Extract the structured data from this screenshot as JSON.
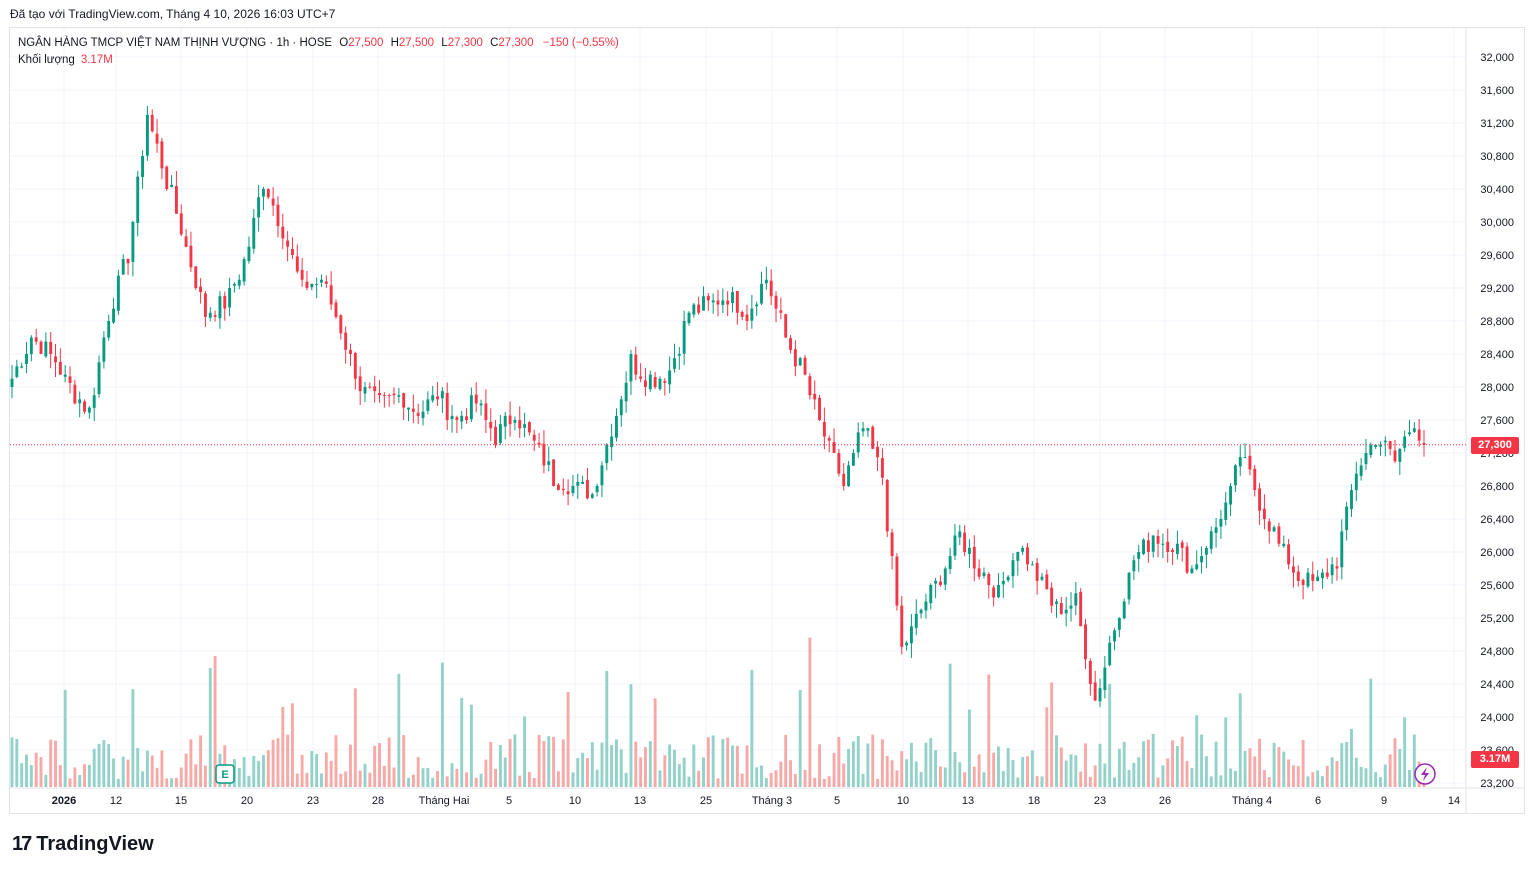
{
  "header": {
    "source_line": "Đã tạo với TradingView.com, Tháng 4 10, 2026 16:03 UTC+7"
  },
  "legend": {
    "symbol": "NGÂN HÀNG TMCP VIỆT NAM THỊNH VƯỢNG · 1h · HOSE",
    "open_label": "O",
    "open": "27,500",
    "high_label": "H",
    "high": "27,500",
    "low_label": "L",
    "low": "27,300",
    "close_label": "C",
    "close": "27,300",
    "change": "−150 (−0.55%)",
    "volume_label": "Khối lượng",
    "volume": "3.17M"
  },
  "badges": {
    "price": "27,300",
    "volume": "3.17M"
  },
  "footer": {
    "logo_mark": "17",
    "logo_text": "TradingView"
  },
  "colors": {
    "up": "#089981",
    "down": "#f23645",
    "up_volume": "#92d2c8",
    "down_volume": "#f7a9a7",
    "grid": "#f0f3fa",
    "price_line": "#f23645"
  },
  "icons": [
    "earnings-e-icon",
    "lightning-icon",
    "tradingview-logo-icon"
  ],
  "chart_data": {
    "type": "candlestick",
    "interval": "1h",
    "exchange": "HOSE",
    "ylim": [
      23100,
      32200
    ],
    "y_ticks": [
      "32,000",
      "31,600",
      "31,200",
      "30,800",
      "30,400",
      "30,000",
      "29,600",
      "29,200",
      "28,800",
      "28,400",
      "28,000",
      "27,600",
      "27,200",
      "26,800",
      "26,400",
      "26,000",
      "25,600",
      "25,200",
      "24,800",
      "24,400",
      "24,000",
      "23,600",
      "23,200"
    ],
    "x_ticks": [
      "2026",
      "12",
      "15",
      "20",
      "23",
      "28",
      "Tháng Hai",
      "5",
      "10",
      "13",
      "25",
      "Tháng 3",
      "5",
      "10",
      "13",
      "18",
      "23",
      "26",
      "Tháng 4",
      "6",
      "9",
      "14"
    ],
    "last_price": 27300,
    "last_volume": "3.17M",
    "close_path": [
      {
        "i": 0,
        "c": 28100
      },
      {
        "i": 4,
        "c": 28600
      },
      {
        "i": 8,
        "c": 28400
      },
      {
        "i": 12,
        "c": 28000
      },
      {
        "i": 16,
        "c": 27700
      },
      {
        "i": 20,
        "c": 28900
      },
      {
        "i": 24,
        "c": 29600
      },
      {
        "i": 28,
        "c": 31300
      },
      {
        "i": 32,
        "c": 30500
      },
      {
        "i": 36,
        "c": 29700
      },
      {
        "i": 40,
        "c": 28900
      },
      {
        "i": 44,
        "c": 29000
      },
      {
        "i": 48,
        "c": 29500
      },
      {
        "i": 52,
        "c": 30500
      },
      {
        "i": 56,
        "c": 29900
      },
      {
        "i": 60,
        "c": 29200
      },
      {
        "i": 64,
        "c": 29300
      },
      {
        "i": 68,
        "c": 28700
      },
      {
        "i": 72,
        "c": 28000
      },
      {
        "i": 76,
        "c": 27800
      },
      {
        "i": 80,
        "c": 27900
      },
      {
        "i": 84,
        "c": 27700
      },
      {
        "i": 88,
        "c": 27900
      },
      {
        "i": 92,
        "c": 27600
      },
      {
        "i": 96,
        "c": 27800
      },
      {
        "i": 100,
        "c": 27400
      },
      {
        "i": 104,
        "c": 27700
      },
      {
        "i": 108,
        "c": 27300
      },
      {
        "i": 112,
        "c": 26900
      },
      {
        "i": 116,
        "c": 26800
      },
      {
        "i": 120,
        "c": 26700
      },
      {
        "i": 124,
        "c": 27500
      },
      {
        "i": 128,
        "c": 28300
      },
      {
        "i": 132,
        "c": 28100
      },
      {
        "i": 136,
        "c": 28200
      },
      {
        "i": 140,
        "c": 28900
      },
      {
        "i": 144,
        "c": 29000
      },
      {
        "i": 148,
        "c": 29100
      },
      {
        "i": 152,
        "c": 28900
      },
      {
        "i": 156,
        "c": 29300
      },
      {
        "i": 160,
        "c": 28600
      },
      {
        "i": 164,
        "c": 28100
      },
      {
        "i": 168,
        "c": 27400
      },
      {
        "i": 172,
        "c": 26800
      },
      {
        "i": 176,
        "c": 27500
      },
      {
        "i": 180,
        "c": 26900
      },
      {
        "i": 184,
        "c": 24800
      },
      {
        "i": 188,
        "c": 25300
      },
      {
        "i": 192,
        "c": 25700
      },
      {
        "i": 196,
        "c": 26200
      },
      {
        "i": 200,
        "c": 25800
      },
      {
        "i": 204,
        "c": 25500
      },
      {
        "i": 208,
        "c": 26100
      },
      {
        "i": 212,
        "c": 25700
      },
      {
        "i": 216,
        "c": 25300
      },
      {
        "i": 220,
        "c": 25400
      },
      {
        "i": 224,
        "c": 24200
      },
      {
        "i": 228,
        "c": 25100
      },
      {
        "i": 232,
        "c": 25900
      },
      {
        "i": 236,
        "c": 26200
      },
      {
        "i": 240,
        "c": 26100
      },
      {
        "i": 244,
        "c": 25800
      },
      {
        "i": 248,
        "c": 26200
      },
      {
        "i": 252,
        "c": 26700
      },
      {
        "i": 254,
        "c": 27200
      },
      {
        "i": 258,
        "c": 26600
      },
      {
        "i": 262,
        "c": 26100
      },
      {
        "i": 266,
        "c": 25700
      },
      {
        "i": 270,
        "c": 25600
      },
      {
        "i": 274,
        "c": 25900
      },
      {
        "i": 278,
        "c": 27000
      },
      {
        "i": 282,
        "c": 27400
      },
      {
        "i": 286,
        "c": 27100
      },
      {
        "i": 290,
        "c": 27600
      },
      {
        "i": 292,
        "c": 27300
      }
    ]
  }
}
